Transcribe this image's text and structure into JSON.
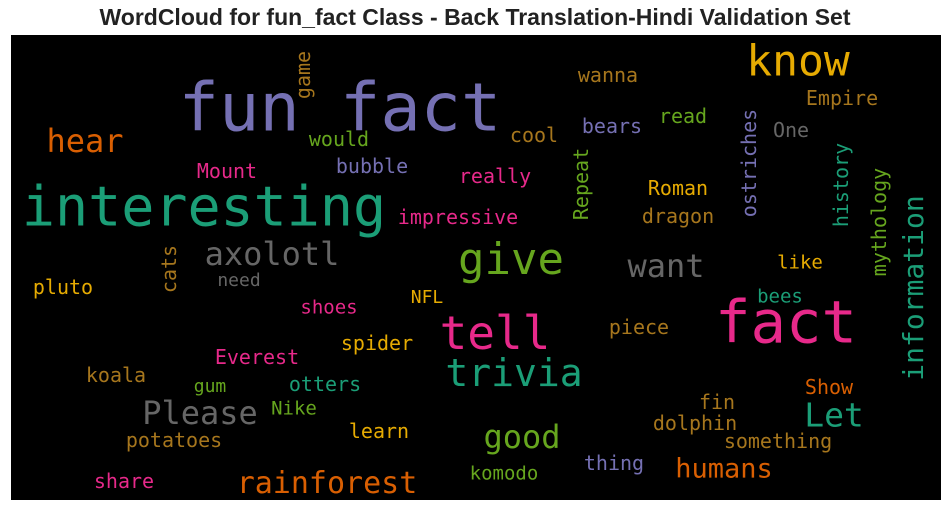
{
  "chart_data": {
    "type": "wordcloud",
    "title": "WordCloud for fun_fact Class - Back Translation-Hindi Validation Set",
    "background": "#000000",
    "palette": [
      "#1b9e77",
      "#d95f02",
      "#7570b3",
      "#e7298a",
      "#66a61e",
      "#e6ab02",
      "#a6761d",
      "#666666"
    ],
    "words": [
      {
        "text": "fun fact",
        "weight": 100,
        "color": "#7570b3",
        "orientation": "horizontal"
      },
      {
        "text": "interesting",
        "weight": 82,
        "color": "#1b9e77",
        "orientation": "horizontal"
      },
      {
        "text": "fact",
        "weight": 88,
        "color": "#e7298a",
        "orientation": "horizontal"
      },
      {
        "text": "know",
        "weight": 60,
        "color": "#e6ab02",
        "orientation": "horizontal"
      },
      {
        "text": "tell",
        "weight": 60,
        "color": "#e7298a",
        "orientation": "horizontal"
      },
      {
        "text": "give",
        "weight": 55,
        "color": "#66a61e",
        "orientation": "horizontal"
      },
      {
        "text": "trivia",
        "weight": 46,
        "color": "#1b9e77",
        "orientation": "horizontal"
      },
      {
        "text": "information",
        "weight": 38,
        "color": "#1b9e77",
        "orientation": "vertical"
      },
      {
        "text": "Let",
        "weight": 42,
        "color": "#1b9e77",
        "orientation": "horizontal"
      },
      {
        "text": "hear",
        "weight": 36,
        "color": "#d95f02",
        "orientation": "horizontal"
      },
      {
        "text": "axolotl",
        "weight": 36,
        "color": "#666666",
        "orientation": "horizontal"
      },
      {
        "text": "want",
        "weight": 36,
        "color": "#666666",
        "orientation": "horizontal"
      },
      {
        "text": "Please",
        "weight": 36,
        "color": "#666666",
        "orientation": "horizontal"
      },
      {
        "text": "good",
        "weight": 36,
        "color": "#66a61e",
        "orientation": "horizontal"
      },
      {
        "text": "rainforest",
        "weight": 36,
        "color": "#d95f02",
        "orientation": "horizontal"
      },
      {
        "text": "humans",
        "weight": 32,
        "color": "#d95f02",
        "orientation": "horizontal"
      },
      {
        "text": "wanna",
        "weight": 24,
        "color": "#a6761d",
        "orientation": "horizontal"
      },
      {
        "text": "game",
        "weight": 22,
        "color": "#a6761d",
        "orientation": "vertical"
      },
      {
        "text": "Empire",
        "weight": 24,
        "color": "#a6761d",
        "orientation": "horizontal"
      },
      {
        "text": "read",
        "weight": 24,
        "color": "#66a61e",
        "orientation": "horizontal"
      },
      {
        "text": "ostriches",
        "weight": 24,
        "color": "#7570b3",
        "orientation": "vertical"
      },
      {
        "text": "One",
        "weight": 24,
        "color": "#666666",
        "orientation": "horizontal"
      },
      {
        "text": "bears",
        "weight": 24,
        "color": "#7570b3",
        "orientation": "horizontal"
      },
      {
        "text": "cool",
        "weight": 24,
        "color": "#a6761d",
        "orientation": "horizontal"
      },
      {
        "text": "would",
        "weight": 24,
        "color": "#66a61e",
        "orientation": "horizontal"
      },
      {
        "text": "history",
        "weight": 24,
        "color": "#1b9e77",
        "orientation": "vertical"
      },
      {
        "text": "mythology",
        "weight": 24,
        "color": "#66a61e",
        "orientation": "vertical"
      },
      {
        "text": "Mount",
        "weight": 24,
        "color": "#e7298a",
        "orientation": "horizontal"
      },
      {
        "text": "bubble",
        "weight": 24,
        "color": "#7570b3",
        "orientation": "horizontal"
      },
      {
        "text": "really",
        "weight": 24,
        "color": "#e7298a",
        "orientation": "horizontal"
      },
      {
        "text": "Repeat",
        "weight": 24,
        "color": "#66a61e",
        "orientation": "vertical"
      },
      {
        "text": "Roman",
        "weight": 24,
        "color": "#e6ab02",
        "orientation": "horizontal"
      },
      {
        "text": "impressive",
        "weight": 24,
        "color": "#e7298a",
        "orientation": "horizontal"
      },
      {
        "text": "dragon",
        "weight": 24,
        "color": "#a6761d",
        "orientation": "horizontal"
      },
      {
        "text": "cats",
        "weight": 24,
        "color": "#a6761d",
        "orientation": "vertical"
      },
      {
        "text": "need",
        "weight": 22,
        "color": "#666666",
        "orientation": "horizontal"
      },
      {
        "text": "like",
        "weight": 22,
        "color": "#e6ab02",
        "orientation": "horizontal"
      },
      {
        "text": "pluto",
        "weight": 24,
        "color": "#e6ab02",
        "orientation": "horizontal"
      },
      {
        "text": "NFL",
        "weight": 22,
        "color": "#e6ab02",
        "orientation": "horizontal"
      },
      {
        "text": "bees",
        "weight": 22,
        "color": "#1b9e77",
        "orientation": "horizontal"
      },
      {
        "text": "shoes",
        "weight": 22,
        "color": "#e7298a",
        "orientation": "horizontal"
      },
      {
        "text": "piece",
        "weight": 22,
        "color": "#a6761d",
        "orientation": "horizontal"
      },
      {
        "text": "spider",
        "weight": 22,
        "color": "#e6ab02",
        "orientation": "horizontal"
      },
      {
        "text": "Everest",
        "weight": 22,
        "color": "#e7298a",
        "orientation": "horizontal"
      },
      {
        "text": "koala",
        "weight": 22,
        "color": "#a6761d",
        "orientation": "horizontal"
      },
      {
        "text": "otters",
        "weight": 22,
        "color": "#1b9e77",
        "orientation": "horizontal"
      },
      {
        "text": "gum",
        "weight": 22,
        "color": "#66a61e",
        "orientation": "horizontal"
      },
      {
        "text": "Show",
        "weight": 22,
        "color": "#d95f02",
        "orientation": "horizontal"
      },
      {
        "text": "Nike",
        "weight": 22,
        "color": "#66a61e",
        "orientation": "horizontal"
      },
      {
        "text": "fin",
        "weight": 22,
        "color": "#a6761d",
        "orientation": "horizontal"
      },
      {
        "text": "dolphin",
        "weight": 22,
        "color": "#a6761d",
        "orientation": "horizontal"
      },
      {
        "text": "learn",
        "weight": 22,
        "color": "#e6ab02",
        "orientation": "horizontal"
      },
      {
        "text": "potatoes",
        "weight": 22,
        "color": "#a6761d",
        "orientation": "horizontal"
      },
      {
        "text": "something",
        "weight": 22,
        "color": "#a6761d",
        "orientation": "horizontal"
      },
      {
        "text": "thing",
        "weight": 22,
        "color": "#7570b3",
        "orientation": "horizontal"
      },
      {
        "text": "komodo",
        "weight": 22,
        "color": "#66a61e",
        "orientation": "horizontal"
      },
      {
        "text": "share",
        "weight": 22,
        "color": "#e7298a",
        "orientation": "horizontal"
      }
    ]
  }
}
